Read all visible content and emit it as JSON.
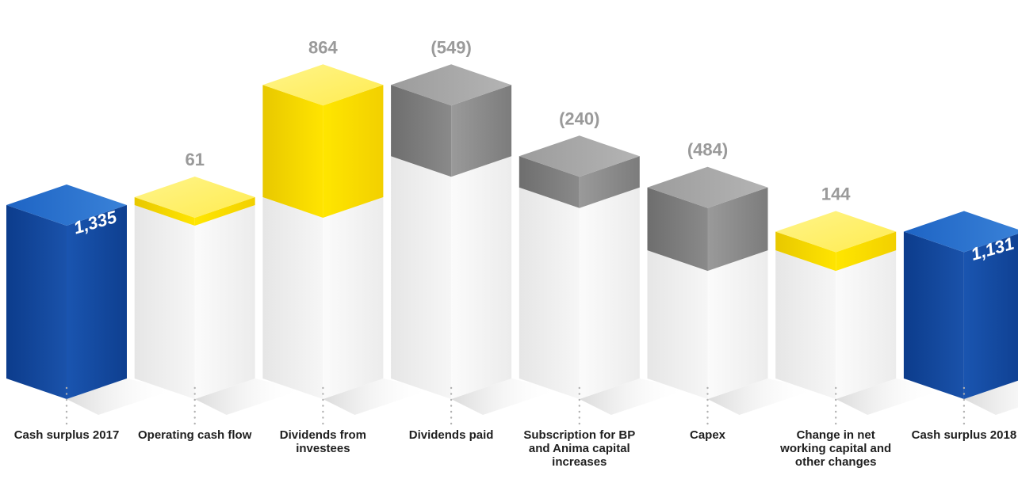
{
  "chart_data": {
    "type": "bar",
    "subtype": "waterfall",
    "categories": [
      "Cash surplus 2017",
      "Operating cash flow",
      "Dividends from investees",
      "Dividends paid",
      "Subscription for BP and Anima capital increases",
      "Capex",
      "Change in net working capital and other changes",
      "Cash surplus 2018"
    ],
    "values": [
      1335,
      61,
      864,
      -549,
      -240,
      -484,
      144,
      1131
    ],
    "value_labels": [
      "1,335",
      "61",
      "864",
      "(549)",
      "(240)",
      "(484)",
      "144",
      "1,131"
    ],
    "kinds": [
      "total",
      "increase",
      "increase",
      "decrease",
      "decrease",
      "decrease",
      "increase",
      "total"
    ],
    "colors": {
      "total": "#1a4ea3",
      "increase": "#ffe500",
      "decrease": "#8c8c8c",
      "base": "#eeeeee"
    },
    "title": "",
    "xlabel": "",
    "ylabel": "",
    "grid": false,
    "legend": "none"
  }
}
